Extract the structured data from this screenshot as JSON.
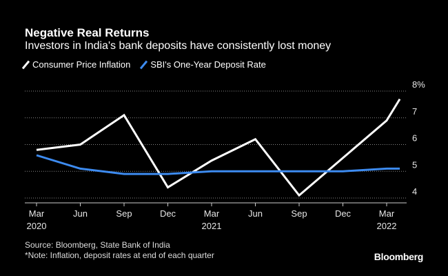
{
  "header": {
    "title": "Negative Real Returns",
    "subtitle": "Investors in India's bank deposits have consistently lost money"
  },
  "footer": {
    "source": "Source: Bloomberg, State Bank of India",
    "note": "*Note: Inflation, deposit rates at end of each quarter",
    "brand": "Bloomberg"
  },
  "chart_data": {
    "type": "line",
    "title": "Negative Real Returns",
    "subtitle": "Investors in India's bank deposits have consistently lost money",
    "x_ticks": [
      {
        "month": "Mar",
        "year": "2020"
      },
      {
        "month": "Jun",
        "year": ""
      },
      {
        "month": "Sep",
        "year": ""
      },
      {
        "month": "Dec",
        "year": ""
      },
      {
        "month": "Mar",
        "year": "2021"
      },
      {
        "month": "Jun",
        "year": ""
      },
      {
        "month": "Sep",
        "year": ""
      },
      {
        "month": "Dec",
        "year": ""
      },
      {
        "month": "Mar",
        "year": "2022"
      }
    ],
    "x_index": [
      0,
      1,
      2,
      3,
      4,
      5,
      6,
      7,
      8,
      8.3
    ],
    "y_ticks": [
      4,
      5,
      6,
      7,
      8
    ],
    "y_tick_labels": [
      "4",
      "5",
      "6",
      "7",
      "8%"
    ],
    "ylim": [
      4,
      8
    ],
    "grid": true,
    "series": [
      {
        "name": "Consumer Price Inflation",
        "color": "#ffffff",
        "values": [
          5.8,
          6.0,
          7.1,
          4.4,
          5.4,
          6.2,
          4.1,
          5.5,
          6.9,
          7.7
        ]
      },
      {
        "name": "SBI's One-Year Deposit Rate",
        "color": "#3d8bf0",
        "values": [
          5.6,
          5.1,
          4.9,
          4.9,
          5.0,
          5.0,
          5.0,
          5.0,
          5.1,
          5.1
        ]
      }
    ]
  }
}
